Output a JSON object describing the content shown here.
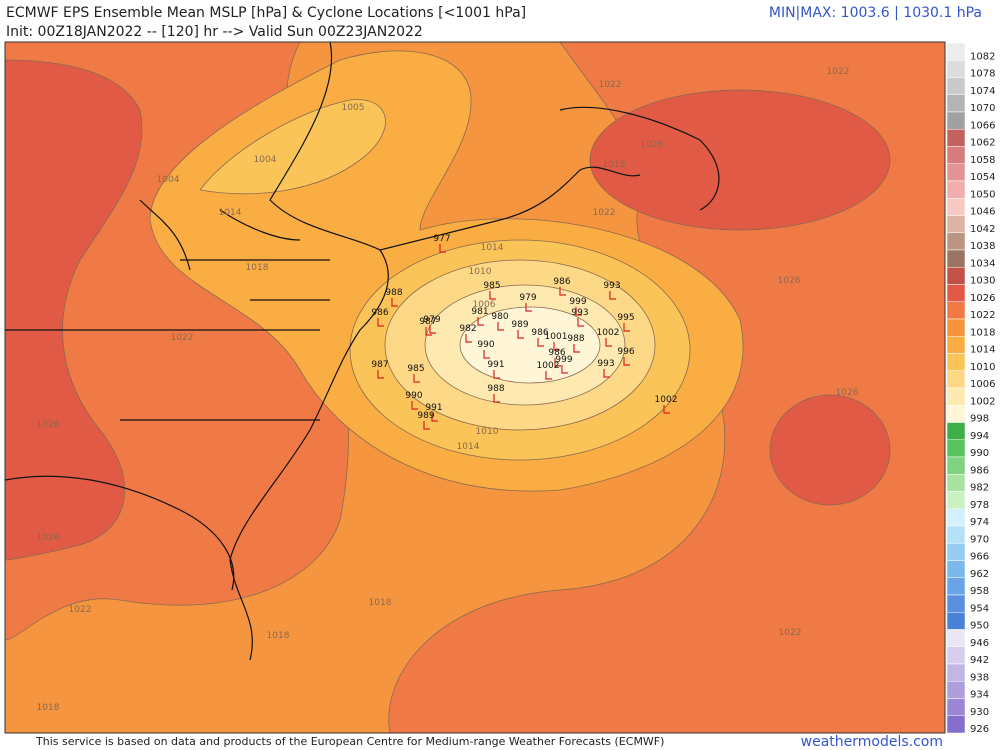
{
  "header": {
    "title": "ECMWF EPS Ensemble Mean MSLP [hPa] & Cyclone Locations [<1001 hPa]",
    "subtitle": "Init: 00Z18JAN2022 -- [120] hr --> Valid Sun 00Z23JAN2022",
    "minmax": "MIN|MAX: 1003.6 | 1030.1 hPa"
  },
  "colorbar": {
    "labels": [
      "1082",
      "1078",
      "1074",
      "1070",
      "1066",
      "1062",
      "1058",
      "1054",
      "1050",
      "1046",
      "1042",
      "1038",
      "1034",
      "1030",
      "1026",
      "1022",
      "1018",
      "1014",
      "1010",
      "1006",
      "1002",
      "998",
      "994",
      "990",
      "986",
      "982",
      "978",
      "974",
      "970",
      "966",
      "962",
      "958",
      "954",
      "950",
      "946",
      "942",
      "938",
      "934",
      "930",
      "926"
    ],
    "colors": [
      "#ececec",
      "#dcdcdc",
      "#cacaca",
      "#b4b4b4",
      "#a0a0a0",
      "#c46262",
      "#d67c7c",
      "#e49494",
      "#f2aeae",
      "#f6cac2",
      "#dcb4a6",
      "#bc9482",
      "#9c7464",
      "#c25248",
      "#e05a45",
      "#f07a45",
      "#f5953f",
      "#f9ad42",
      "#fbc458",
      "#fdd886",
      "#fee9b0",
      "#fff6d8",
      "#3fae44",
      "#5cc45c",
      "#80d480",
      "#a8e4a0",
      "#c8f0c0",
      "#d4f0fc",
      "#b4e0f8",
      "#96ccf2",
      "#7cb8ec",
      "#6aa4e6",
      "#5a90de",
      "#4a80d6",
      "#ebe6f4",
      "#d6ceec",
      "#c2b6e4",
      "#ae9edc",
      "#9a86d4",
      "#866ecc"
    ]
  },
  "contour_labels": [
    "1022",
    "1022",
    "1018",
    "1026",
    "1022",
    "1005",
    "1004",
    "1004",
    "1014",
    "1018",
    "1022",
    "1014",
    "1010",
    "1006",
    "1010",
    "1014",
    "1026",
    "1026",
    "1026",
    "1026",
    "1022",
    "1018",
    "1018",
    "1022",
    "1018"
  ],
  "cyclones": [
    "977",
    "985",
    "979",
    "986",
    "993",
    "999",
    "993",
    "995",
    "988",
    "986",
    "987",
    "979",
    "982",
    "981",
    "980",
    "989",
    "986",
    "1001",
    "988",
    "1002",
    "990",
    "991",
    "986",
    "999",
    "1002",
    "993",
    "996",
    "985",
    "987",
    "990",
    "991",
    "989",
    "988",
    "1002"
  ],
  "footer": {
    "credit": "This service is based on data and products of the European Centre for Medium-range Weather Forecasts (ECMWF)",
    "site": "weathermodels.com"
  }
}
